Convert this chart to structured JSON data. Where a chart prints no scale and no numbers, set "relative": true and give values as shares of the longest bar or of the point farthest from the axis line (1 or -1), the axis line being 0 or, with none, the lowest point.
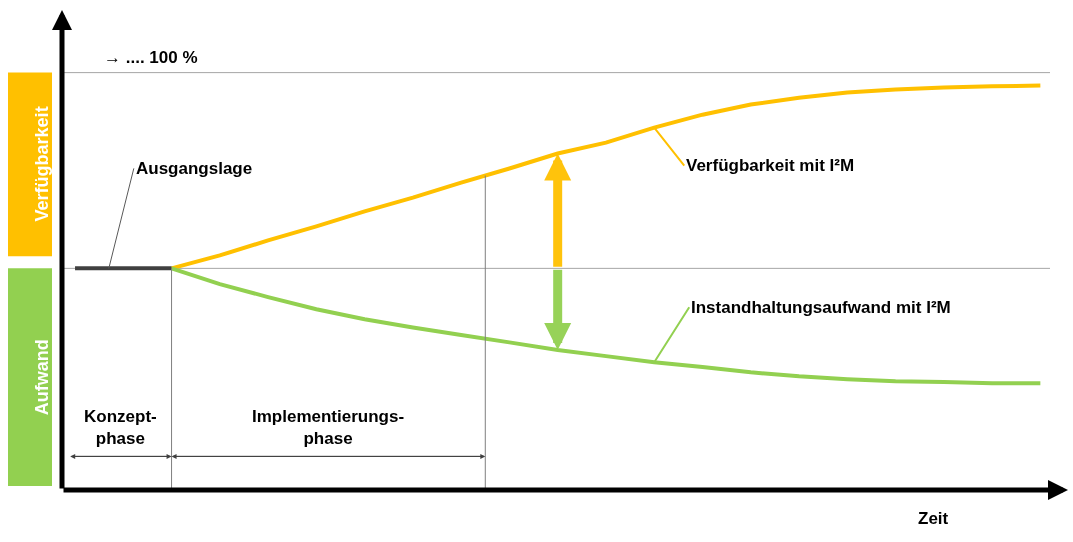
{
  "chart_data": {
    "type": "line",
    "relative": true,
    "xlabel": "Zeit",
    "marker": "none",
    "categories": [
      null,
      null,
      null,
      null,
      null,
      null,
      null,
      null,
      null,
      null,
      null,
      null,
      null,
      null,
      null,
      null,
      null,
      null,
      null,
      null,
      null
    ],
    "series": [
      {
        "name": "Verfügbarkeit mit I²M",
        "color": "#ffc000",
        "values": [
          null,
          null,
          0.548,
          0.58,
          0.617,
          0.652,
          0.689,
          0.723,
          0.76,
          0.795,
          0.832,
          0.859,
          0.896,
          0.928,
          0.953,
          0.97,
          0.983,
          0.99,
          0.995,
          0.998,
          1.0
        ]
      },
      {
        "name": "Instandhaltungsaufwand mit I²M",
        "color": "#92d050",
        "values": [
          null,
          null,
          0.548,
          0.509,
          0.477,
          0.447,
          0.422,
          0.402,
          0.383,
          0.365,
          0.346,
          0.331,
          0.316,
          0.304,
          0.291,
          0.281,
          0.274,
          0.269,
          0.267,
          0.264,
          0.264
        ]
      },
      {
        "color": "#404040",
        "values": [
          0.548,
          0.548,
          0.548,
          null,
          null,
          null,
          null,
          null,
          null,
          null,
          null,
          null,
          null,
          null,
          null,
          null,
          null,
          null,
          null,
          null,
          null
        ]
      }
    ],
    "ref_lines": [
      {
        "axis": "y",
        "value": 1.032,
        "label": "→ .... 100 %",
        "color": "#a6a6a6"
      },
      {
        "axis": "y",
        "value": 0.548,
        "color": "#a6a6a6"
      }
    ],
    "annotations": [
      "Verfügbarkeit",
      "Aufwand",
      "Ausgangslage",
      "Konzept-\nphase",
      "Implementierungs-\nphase"
    ]
  }
}
